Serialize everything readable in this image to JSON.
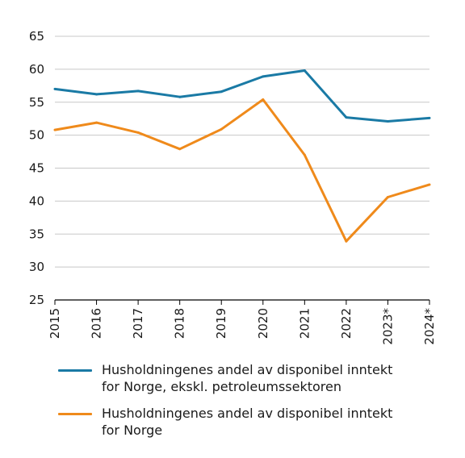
{
  "chart_data": {
    "type": "line",
    "categories": [
      "2015",
      "2016",
      "2017",
      "2018",
      "2019",
      "2020",
      "2021",
      "2022",
      "2023*",
      "2024*"
    ],
    "series": [
      {
        "name": "Husholdningenes andel av disponibel inntekt\nfor Norge, ekskl. petroleumssektoren",
        "color": "#1a7aa5",
        "values": [
          57.0,
          56.2,
          56.7,
          55.8,
          56.6,
          58.9,
          59.8,
          52.7,
          52.1,
          52.6
        ]
      },
      {
        "name": "Husholdningenes andel av disponibel inntekt\nfor Norge",
        "color": "#ef8a1b",
        "values": [
          50.8,
          51.9,
          50.4,
          47.9,
          50.9,
          55.4,
          47.0,
          33.9,
          40.6,
          42.5
        ]
      }
    ],
    "yticks": [
      "25",
      "30",
      "35",
      "40",
      "45",
      "50",
      "55",
      "60",
      "65"
    ],
    "ylim": [
      25,
      65
    ],
    "grid": true,
    "legend_position": "bottom"
  }
}
